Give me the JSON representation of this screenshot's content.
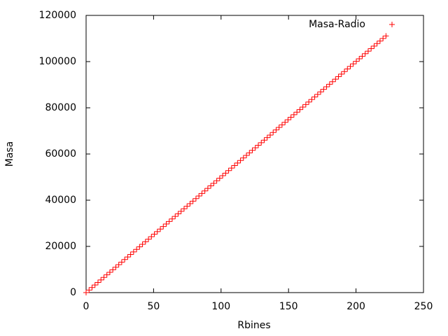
{
  "chart_data": {
    "type": "scatter",
    "xlabel": "Rbines",
    "ylabel": "Masa",
    "xlim": [
      0,
      250
    ],
    "xticks": [
      0,
      50,
      100,
      150,
      200,
      250
    ],
    "ylim": [
      0,
      120000
    ],
    "yticks": [
      0,
      20000,
      40000,
      60000,
      80000,
      100000,
      120000
    ],
    "legend": "upper right",
    "series": [
      {
        "name": "Masa-Radio",
        "color": "#ff0000",
        "x": [
          0,
          2.2,
          4.4,
          6.6,
          8.8,
          11,
          13.2,
          15.4,
          17.6,
          19.8,
          22,
          24.2,
          26.4,
          28.6,
          30.8,
          33,
          35.2,
          37.4,
          39.6,
          41.8,
          44,
          46.2,
          48.4,
          50.6,
          52.8,
          55,
          57.2,
          59.4,
          61.6,
          63.8,
          66,
          68.2,
          70.4,
          72.6,
          74.8,
          77,
          79.2,
          81.4,
          83.6,
          85.8,
          88,
          90.2,
          92.4,
          94.6,
          96.8,
          99,
          101.2,
          103.4,
          105.6,
          107.8,
          110,
          112.2,
          114.4,
          116.6,
          118.8,
          121,
          123.2,
          125.4,
          127.6,
          129.8,
          132,
          134.2,
          136.4,
          138.6,
          140.8,
          143,
          145.2,
          147.4,
          149.6,
          151.8,
          154,
          156.2,
          158.4,
          160.6,
          162.8,
          165,
          167.2,
          169.4,
          171.6,
          173.8,
          176,
          178.2,
          180.4,
          182.6,
          184.8,
          187,
          189.2,
          191.4,
          193.6,
          195.8,
          198,
          200.2,
          202.4,
          204.6,
          206.8,
          209,
          211.2,
          213.4,
          215.6,
          217.8,
          220,
          222.2
        ],
        "values": [
          0,
          1100,
          2200,
          3300,
          4400,
          5500,
          6600,
          7700,
          8800,
          9900,
          11000,
          12100,
          13200,
          14300,
          15400,
          16500,
          17600,
          18700,
          19800,
          20900,
          22000,
          23100,
          24200,
          25300,
          26400,
          27500,
          28600,
          29700,
          30800,
          31900,
          33000,
          34100,
          35200,
          36300,
          37400,
          38500,
          39600,
          40700,
          41800,
          42900,
          44000,
          45100,
          46200,
          47300,
          48400,
          49500,
          50600,
          51700,
          52800,
          53900,
          55000,
          56100,
          57200,
          58300,
          59400,
          60500,
          61600,
          62700,
          63800,
          64900,
          66000,
          67100,
          68200,
          69300,
          70400,
          71500,
          72600,
          73700,
          74800,
          75900,
          77000,
          78100,
          79200,
          80300,
          81400,
          82500,
          83600,
          84700,
          85800,
          86900,
          88000,
          89100,
          90200,
          91300,
          92400,
          93500,
          94600,
          95700,
          96800,
          97900,
          99000,
          100100,
          101200,
          102300,
          103400,
          104500,
          105600,
          106700,
          107800,
          108900,
          110000,
          111100
        ]
      }
    ]
  }
}
